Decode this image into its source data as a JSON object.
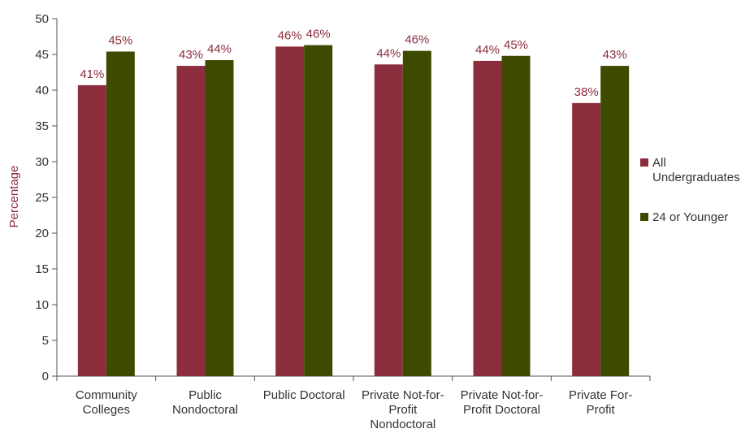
{
  "chart_data": {
    "type": "bar",
    "title": "",
    "xlabel": "",
    "ylabel": "Percentage",
    "ylim": [
      0,
      50
    ],
    "yticks": [
      0,
      5,
      10,
      15,
      20,
      25,
      30,
      35,
      40,
      45,
      50
    ],
    "grid": false,
    "legend_position": "right",
    "categories": [
      [
        "Community",
        "Colleges"
      ],
      [
        "Public",
        "Nondoctoral"
      ],
      [
        "Public Doctoral"
      ],
      [
        "Private Not-for-",
        "Profit",
        "Nondoctoral"
      ],
      [
        "Private Not-for-",
        "Profit Doctoral"
      ],
      [
        "Private For-",
        "Profit"
      ]
    ],
    "series": [
      {
        "name": [
          "All",
          "Undergraduates"
        ],
        "color": "#8b2d3c",
        "values": [
          40.7,
          43.4,
          46.1,
          43.6,
          44.1,
          38.2
        ],
        "labels": [
          "41%",
          "43%",
          "46%",
          "44%",
          "44%",
          "38%"
        ]
      },
      {
        "name": [
          "24 or Younger"
        ],
        "color": "#3d4a00",
        "values": [
          45.4,
          44.2,
          46.3,
          45.5,
          44.8,
          43.4
        ],
        "labels": [
          "45%",
          "44%",
          "46%",
          "46%",
          "45%",
          "43%"
        ]
      }
    ]
  }
}
